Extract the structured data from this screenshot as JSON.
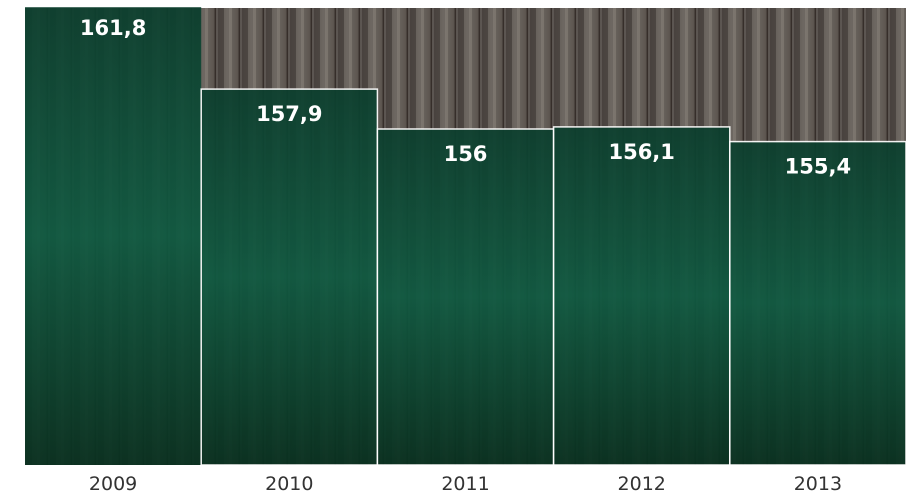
{
  "chart_data": {
    "type": "bar",
    "categories": [
      "2009",
      "2010",
      "2011",
      "2012",
      "2013"
    ],
    "values": [
      161.8,
      157.9,
      156,
      156.1,
      155.4
    ],
    "value_labels": [
      "161,8",
      "157,9",
      "156",
      "156,1",
      "155,4"
    ],
    "color": "#0d4a36",
    "ylim": [
      140,
      162
    ]
  }
}
